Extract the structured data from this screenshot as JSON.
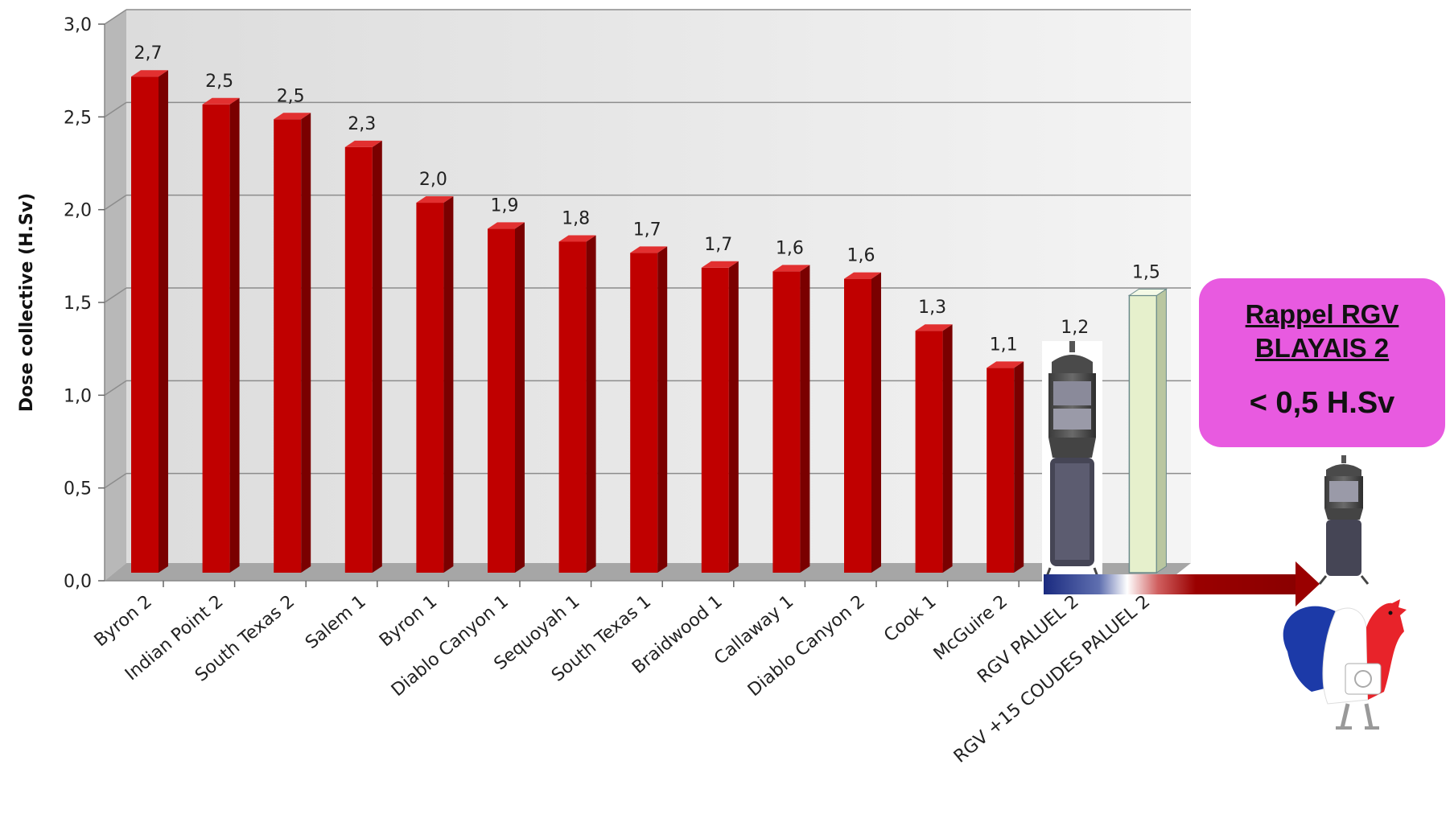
{
  "chart_data": {
    "type": "bar",
    "ylabel": "Dose collective  (H.Sv)",
    "ylim": [
      0,
      3.0
    ],
    "y_ticks": [
      "0,0",
      "0,5",
      "1,0",
      "1,5",
      "2,0",
      "2,5",
      "3,0"
    ],
    "grid": true,
    "categories": [
      "Byron 2",
      "Indian Point 2",
      "South Texas 2",
      "Salem 1",
      "Byron 1",
      "Diablo Canyon 1",
      "Sequoyah 1",
      "South Texas 1",
      "Braidwood 1",
      "Callaway 1",
      "Diablo Canyon 2",
      "Cook 1",
      "McGuire 2",
      "RGV PALUEL 2",
      "RGV +15 COUDES PALUEL 2"
    ],
    "values": [
      2.7,
      2.55,
      2.47,
      2.32,
      2.02,
      1.88,
      1.81,
      1.75,
      1.67,
      1.65,
      1.61,
      1.33,
      1.13,
      1.2,
      1.52
    ],
    "data_labels": [
      "2,7",
      "2,5",
      "2,5",
      "2,3",
      "2,0",
      "1,9",
      "1,8",
      "1,7",
      "1,7",
      "1,6",
      "1,6",
      "1,3",
      "1,1",
      "1,2",
      "1,5"
    ],
    "bar_colors": [
      "#c00000",
      "#c00000",
      "#c00000",
      "#c00000",
      "#c00000",
      "#c00000",
      "#c00000",
      "#c00000",
      "#c00000",
      "#c00000",
      "#c00000",
      "#c00000",
      "#c00000",
      "image",
      "#e6f0cc"
    ]
  },
  "callout": {
    "line1": "Rappel RGV",
    "line2": "BLAYAIS 2",
    "line3": "< 0,5 H.Sv",
    "color": "#e85ae0"
  },
  "decorations": {
    "arrow_colors": [
      "#1a2a80",
      "#ffffff",
      "#9a0000"
    ],
    "images": [
      "steam-generator-image",
      "steam-generator-image-small",
      "french-rooster-logo"
    ]
  }
}
